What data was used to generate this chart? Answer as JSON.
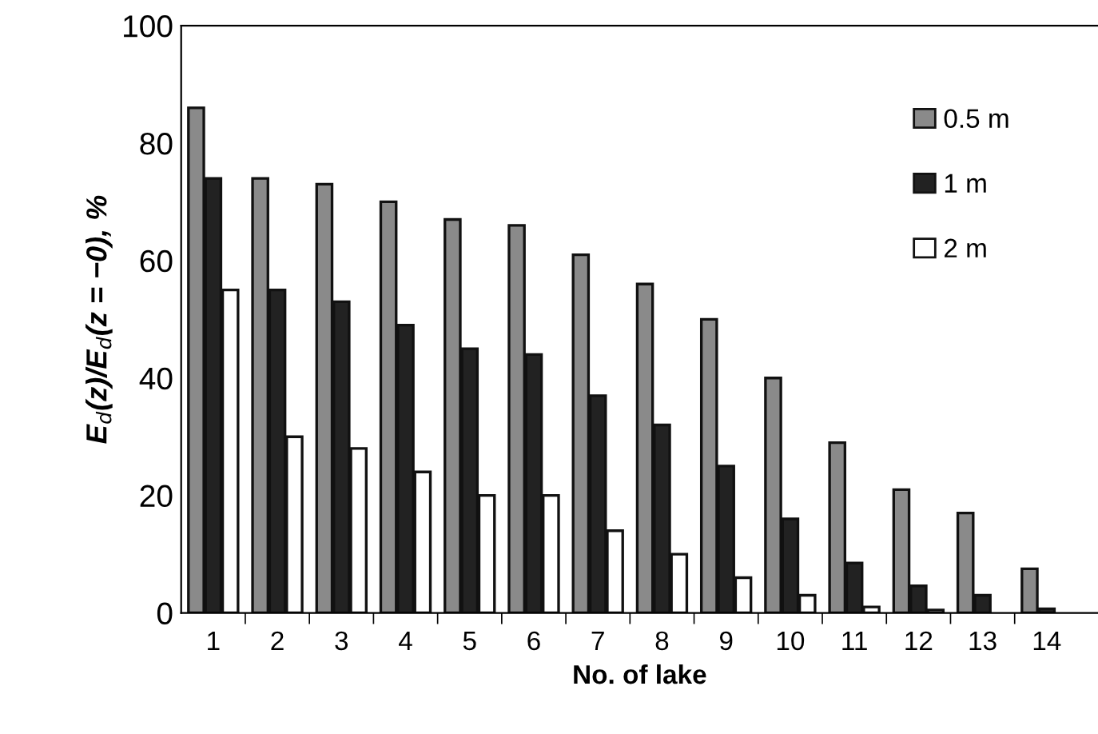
{
  "chart_data": {
    "type": "bar",
    "xlabel": "No. of lake",
    "ylabel": "E$_{d}$(z)/E$_{d}$(z = −0), %",
    "categories": [
      "1",
      "2",
      "3",
      "4",
      "5",
      "6",
      "7",
      "8",
      "9",
      "10",
      "11",
      "12",
      "13",
      "14"
    ],
    "series": [
      {
        "name": "0.5 m",
        "color": "#8a8a8a",
        "values": [
          86,
          74,
          73,
          70,
          67,
          66,
          61,
          56,
          50,
          40,
          29,
          21,
          17,
          7.5
        ]
      },
      {
        "name": "1 m",
        "color": "#222222",
        "values": [
          74,
          55,
          53,
          49,
          45,
          44,
          37,
          32,
          25,
          16,
          8.5,
          4.6,
          3,
          0.7
        ]
      },
      {
        "name": "2 m",
        "color": "#ffffff",
        "values": [
          55,
          30,
          28,
          24,
          20,
          20,
          14,
          10,
          6,
          3,
          1,
          0.5,
          null,
          null
        ]
      }
    ],
    "ylim": [
      0,
      100
    ],
    "yticks": [
      0,
      20,
      40,
      60,
      80,
      100
    ],
    "grid": false,
    "legend": "top right"
  }
}
